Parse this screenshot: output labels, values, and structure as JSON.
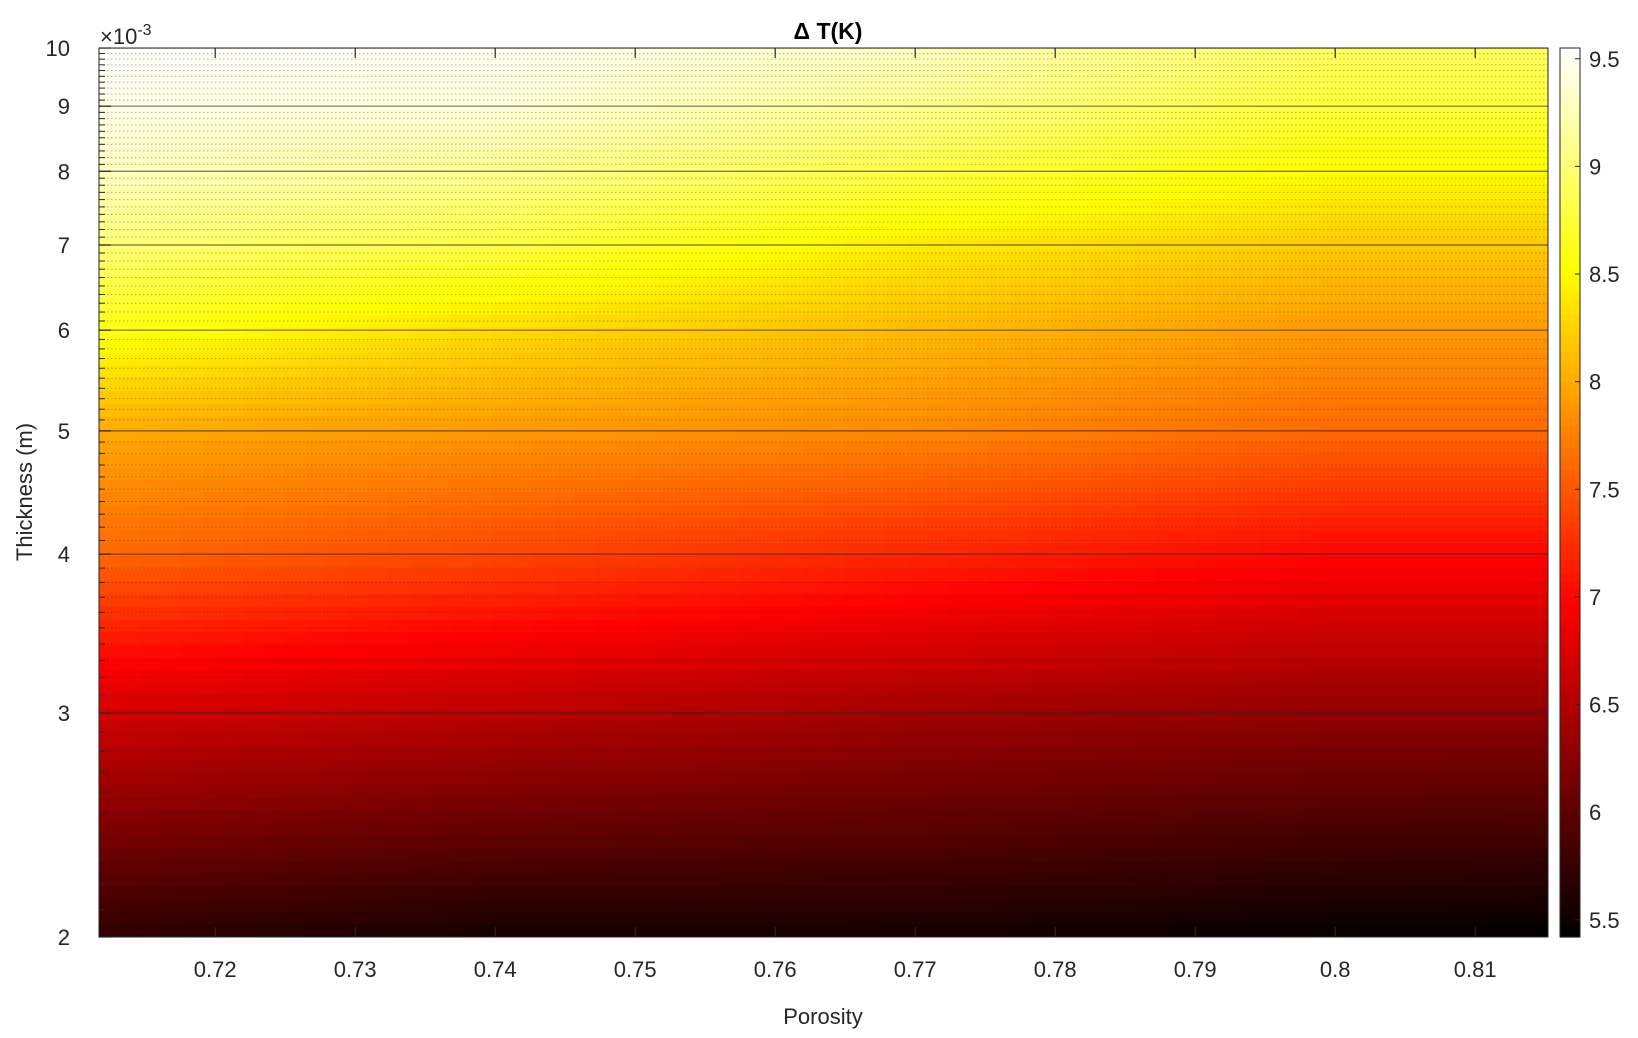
{
  "chart_data": {
    "type": "heatmap",
    "title": "Δ T(K)",
    "xlabel": "Porosity",
    "ylabel": "Thickness (m)",
    "y_exponent_base": "×10",
    "y_exponent_power": "-3",
    "xlim": [
      0.7117,
      0.8152
    ],
    "ylim": [
      0.002,
      0.01
    ],
    "yscale": "log",
    "x_ticks": [
      0.72,
      0.73,
      0.74,
      0.75,
      0.76,
      0.77,
      0.78,
      0.79,
      0.8,
      0.81
    ],
    "x_tick_labels": [
      "0.72",
      "0.73",
      "0.74",
      "0.75",
      "0.76",
      "0.77",
      "0.78",
      "0.79",
      "0.8",
      "0.81"
    ],
    "y_ticks": [
      0.002,
      0.003,
      0.004,
      0.005,
      0.006,
      0.007,
      0.008,
      0.009,
      0.01
    ],
    "y_tick_labels": [
      "2",
      "3",
      "4",
      "5",
      "6",
      "7",
      "8",
      "9",
      "10"
    ],
    "colorbar": {
      "colormap": "hot",
      "limits": [
        5.42,
        9.55
      ],
      "ticks": [
        5.5,
        6,
        6.5,
        7,
        7.5,
        8,
        8.5,
        9,
        9.5
      ],
      "tick_labels": [
        "5.5",
        "6",
        "6.5",
        "7",
        "7.5",
        "8",
        "8.5",
        "9",
        "9.5"
      ]
    },
    "surface_samples": {
      "x": [
        0.712,
        0.74,
        0.77,
        0.8,
        0.815
      ],
      "y": [
        0.002,
        0.003,
        0.004,
        0.005,
        0.006,
        0.007,
        0.008,
        0.009,
        0.01
      ],
      "z": [
        [
          5.7,
          5.55,
          5.55,
          5.45,
          5.42
        ],
        [
          6.7,
          6.55,
          6.4,
          6.3,
          6.3
        ],
        [
          7.6,
          7.4,
          7.2,
          7.0,
          7.0
        ],
        [
          8.0,
          7.9,
          7.8,
          7.6,
          7.6
        ],
        [
          8.6,
          8.3,
          8.1,
          7.9,
          7.9
        ],
        [
          9.0,
          8.8,
          8.4,
          8.2,
          8.2
        ],
        [
          9.3,
          9.1,
          8.8,
          8.5,
          8.5
        ],
        [
          9.45,
          9.4,
          9.1,
          8.75,
          8.75
        ],
        [
          9.55,
          9.5,
          9.3,
          8.9,
          8.9
        ]
      ]
    },
    "grid": "y-major-solid-minor-dotted"
  }
}
